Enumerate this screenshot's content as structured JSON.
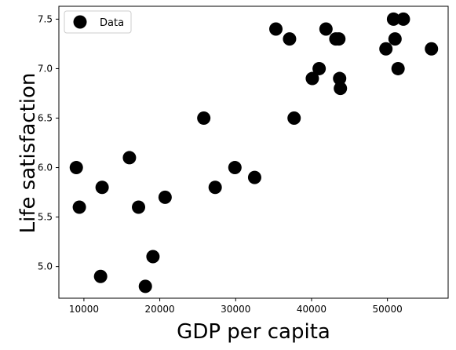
{
  "chart_data": {
    "type": "scatter",
    "title": "",
    "xlabel": "GDP per capita",
    "ylabel": "Life satisfaction",
    "xlim": [
      6700,
      58000
    ],
    "ylim": [
      4.68,
      7.63
    ],
    "xticks": [
      10000,
      20000,
      30000,
      40000,
      50000
    ],
    "yticks": [
      5.0,
      5.5,
      6.0,
      6.5,
      7.0,
      7.5
    ],
    "xtick_labels": [
      "10000",
      "20000",
      "30000",
      "40000",
      "50000"
    ],
    "ytick_labels": [
      "5.0",
      "5.5",
      "6.0",
      "6.5",
      "7.0",
      "7.5"
    ],
    "grid": false,
    "legend": {
      "position": "top-left",
      "entries": [
        "Data"
      ]
    },
    "marker_color": "#000000",
    "series": [
      {
        "name": "Data",
        "points": [
          [
            9000,
            6.0
          ],
          [
            9400,
            5.6
          ],
          [
            12200,
            4.9
          ],
          [
            12400,
            5.8
          ],
          [
            16000,
            6.1
          ],
          [
            17200,
            5.6
          ],
          [
            18100,
            4.8
          ],
          [
            19100,
            5.1
          ],
          [
            20700,
            5.7
          ],
          [
            25800,
            6.5
          ],
          [
            27300,
            5.8
          ],
          [
            29900,
            6.0
          ],
          [
            32500,
            5.9
          ],
          [
            35300,
            7.4
          ],
          [
            37100,
            7.3
          ],
          [
            37700,
            6.5
          ],
          [
            40100,
            6.9
          ],
          [
            41000,
            7.0
          ],
          [
            41900,
            7.4
          ],
          [
            43200,
            7.3
          ],
          [
            43600,
            7.3
          ],
          [
            43700,
            6.9
          ],
          [
            43800,
            6.8
          ],
          [
            49800,
            7.2
          ],
          [
            50800,
            7.5
          ],
          [
            51000,
            7.3
          ],
          [
            51400,
            7.0
          ],
          [
            52100,
            7.5
          ],
          [
            55800,
            7.2
          ]
        ]
      }
    ]
  }
}
